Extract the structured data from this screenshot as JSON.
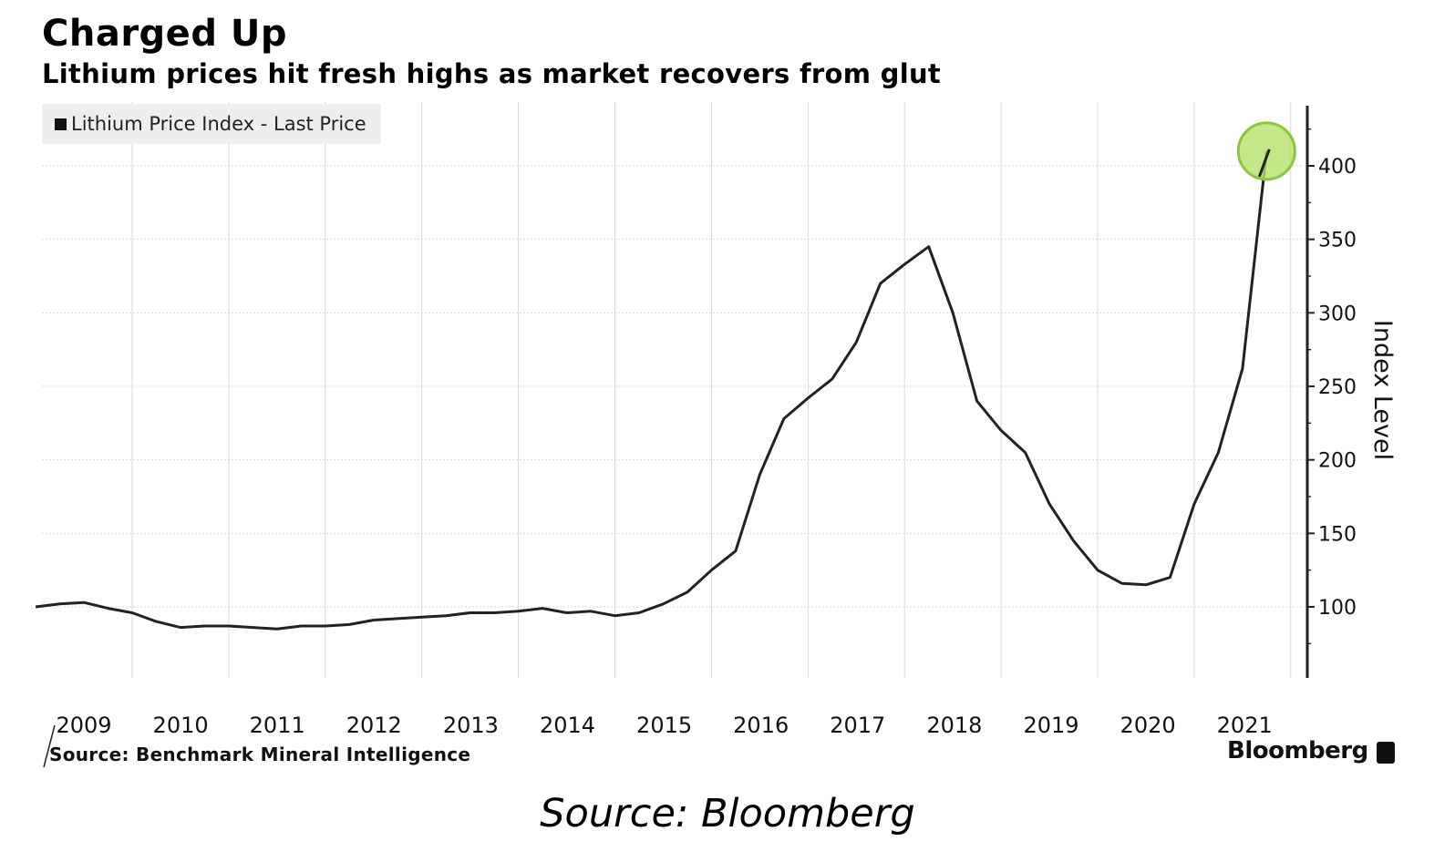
{
  "header": {
    "title": "Charged Up",
    "subtitle": "Lithium prices hit fresh highs as market recovers from glut"
  },
  "legend": {
    "label": "Lithium Price Index - Last Price"
  },
  "footer": {
    "source_note": "Source: Benchmark Mineral Intelligence",
    "brand": "Bloomberg",
    "caption": "Source: Bloomberg"
  },
  "colors": {
    "line": "#222222",
    "grid": "#d9d9d9",
    "highlight_fill": "#b5e26a",
    "highlight_stroke": "#8cc63f"
  },
  "chart_data": {
    "type": "line",
    "title": "Charged Up",
    "subtitle": "Lithium prices hit fresh highs as market recovers from glut",
    "ylabel": "Index Level",
    "xlabel": "",
    "ylim": [
      50,
      440
    ],
    "y_ticks": [
      100,
      150,
      200,
      250,
      300,
      350,
      400
    ],
    "x_tick_labels": [
      "2009",
      "2010",
      "2011",
      "2012",
      "2013",
      "2014",
      "2015",
      "2016",
      "2017",
      "2018",
      "2019",
      "2020",
      "2021"
    ],
    "grid": true,
    "legend_position": "top-left",
    "series": [
      {
        "name": "Lithium Price Index - Last Price",
        "x": [
          "2009-01",
          "2009-04",
          "2009-07",
          "2009-10",
          "2010-01",
          "2010-04",
          "2010-07",
          "2010-10",
          "2011-01",
          "2011-04",
          "2011-07",
          "2011-10",
          "2012-01",
          "2012-04",
          "2012-07",
          "2012-10",
          "2013-01",
          "2013-04",
          "2013-07",
          "2013-10",
          "2014-01",
          "2014-04",
          "2014-07",
          "2014-10",
          "2015-01",
          "2015-04",
          "2015-07",
          "2015-10",
          "2016-01",
          "2016-04",
          "2016-07",
          "2016-10",
          "2017-01",
          "2017-04",
          "2017-07",
          "2017-10",
          "2018-01",
          "2018-04",
          "2018-07",
          "2018-10",
          "2019-01",
          "2019-04",
          "2019-07",
          "2019-10",
          "2020-01",
          "2020-04",
          "2020-07",
          "2020-10",
          "2021-01",
          "2021-04",
          "2021-07",
          "2021-10"
        ],
        "y": [
          100,
          102,
          103,
          99,
          96,
          90,
          86,
          87,
          87,
          86,
          85,
          87,
          87,
          88,
          91,
          92,
          93,
          94,
          96,
          96,
          97,
          99,
          96,
          97,
          94,
          96,
          102,
          110,
          125,
          138,
          190,
          228,
          242,
          255,
          280,
          320,
          333,
          345,
          300,
          240,
          220,
          205,
          170,
          145,
          125,
          116,
          115,
          120,
          170,
          205,
          262,
          410
        ]
      }
    ],
    "annotations": [
      {
        "type": "highlight-circle",
        "x": "2021-10",
        "y": 410
      }
    ]
  }
}
